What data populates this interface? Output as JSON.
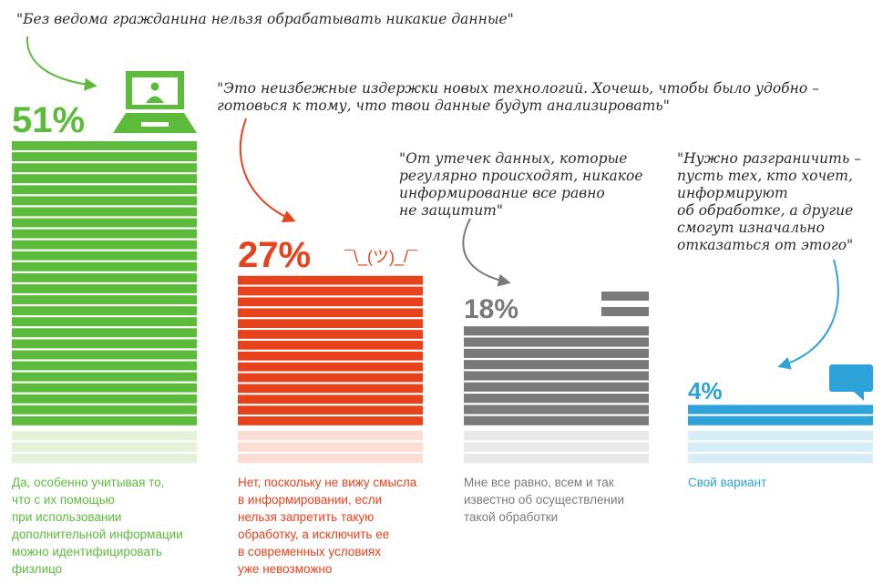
{
  "chart_data": {
    "type": "bar",
    "categories": [
      "Да",
      "Нет",
      "Мне все равно",
      "Свой вариант"
    ],
    "values": [
      51,
      27,
      18,
      4
    ],
    "unit": "%",
    "ylim": [
      0,
      51
    ],
    "series": [
      {
        "value_label": "51%",
        "color": "#5dbb3c",
        "light_color": "#e3f2d9",
        "quote": "\"Без ведома гражданина нельзя обрабатывать никакие данные\"",
        "caption": "Да, особенно учитывая то,\nчто с их помощью\nпри использовании\nдополнительной информации\nможно идентифицировать\nфизлицо",
        "icon": "laptop-person-icon"
      },
      {
        "value_label": "27%",
        "color": "#e8421c",
        "light_color": "#fbddd3",
        "quote": "\"Это неизбежные издержки новых технологий. Хочешь, чтобы было удобно –\nготовься к тому, что твои данные будут анализировать\"",
        "caption": "Нет, поскольку не вижу смысла\nв информировании, если\nнельзя запретить такую\nобработку, а исключить ее\nв современных условиях\nуже невозможно",
        "emoticon": "¯\\_(ツ)_/¯"
      },
      {
        "value_label": "18%",
        "color": "#7a7a7a",
        "light_color": "#e9e9e9",
        "quote": "\"От утечек данных, которые\nрегулярно происходят, никакое\nинформирование все равно\nне защитит\"",
        "caption": "Мне все равно, всем и так\nизвестно об осуществлении\nтакой обработки",
        "icon": "equals-icon"
      },
      {
        "value_label": "4%",
        "color": "#2ea3d9",
        "light_color": "#d7eef9",
        "quote": "\"Нужно разграничить –\nпусть тех, кто хочет,\nинформируют\nоб обработке, а другие\nсмогут изначально\nотказаться от этого\"",
        "caption": "Свой вариант",
        "icon": "speech-bubble-icon"
      }
    ]
  }
}
